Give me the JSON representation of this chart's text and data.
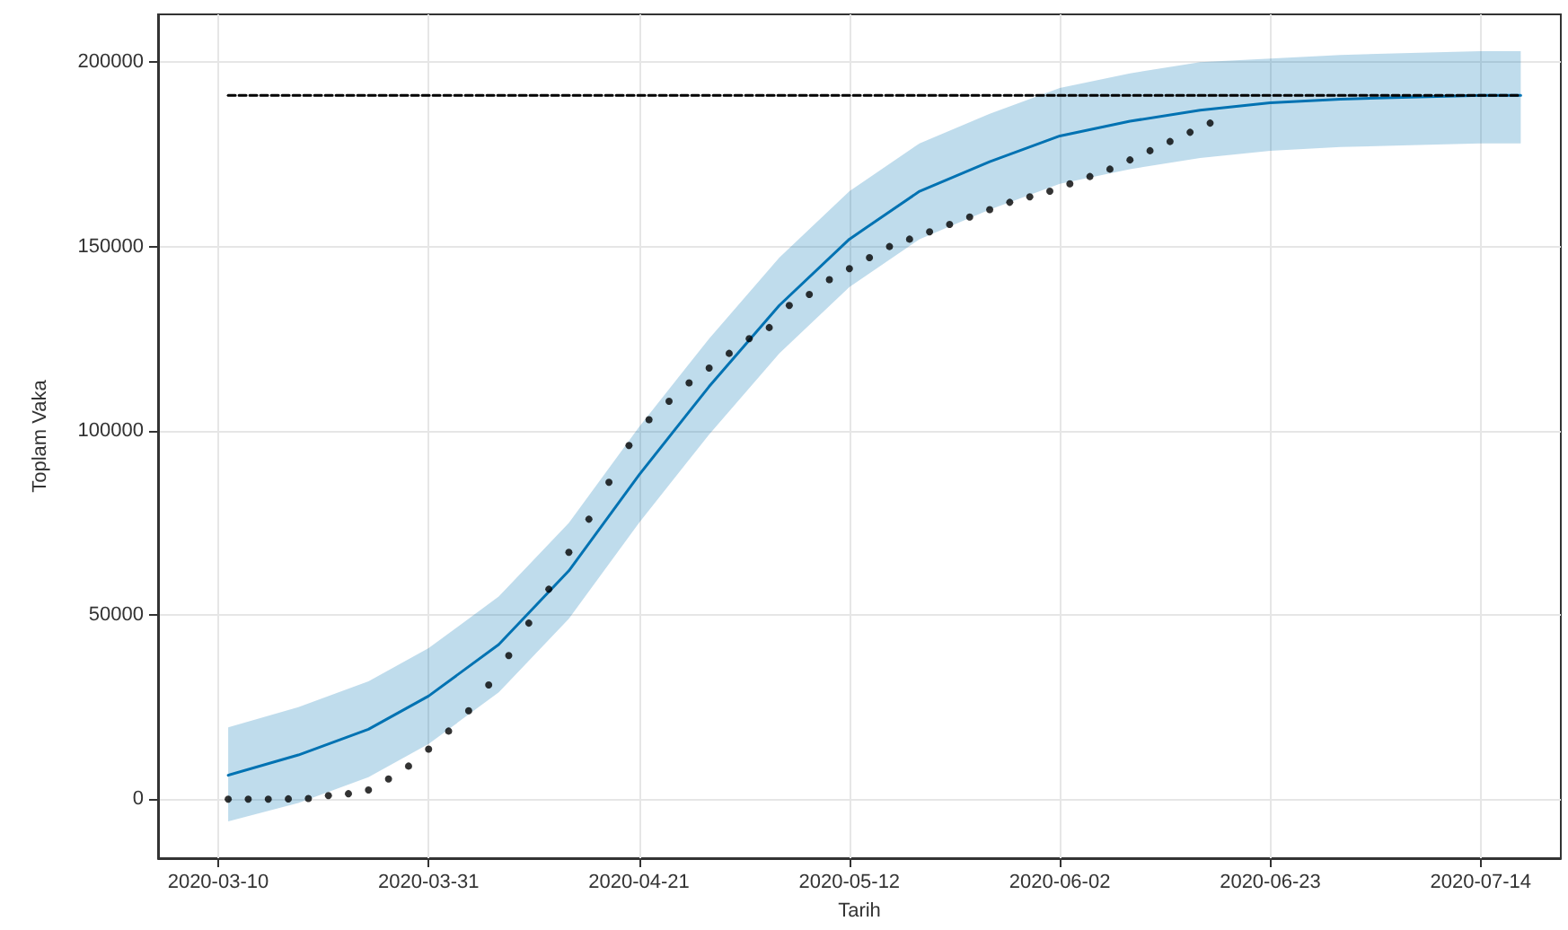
{
  "chart_data": {
    "type": "line",
    "xlabel": "Tarih",
    "ylabel": "Toplam Vaka",
    "grid": true,
    "xlim": [
      "2020-03-04",
      "2020-07-22"
    ],
    "xticks": [
      "2020-03-10",
      "2020-03-31",
      "2020-04-21",
      "2020-05-12",
      "2020-06-02",
      "2020-06-23",
      "2020-07-14"
    ],
    "ylim": [
      -16000,
      213000
    ],
    "yticks": [
      0,
      50000,
      100000,
      150000,
      200000
    ],
    "series": [
      {
        "color": "#000000",
        "line_style": "dashed",
        "marker": "none",
        "x": [
          "2020-03-11",
          "2020-07-18"
        ],
        "values": [
          191000,
          191000
        ]
      },
      {
        "color": "#0072b2",
        "marker": "none",
        "x": [
          "2020-03-11",
          "2020-03-18",
          "2020-03-25",
          "2020-03-31",
          "2020-04-07",
          "2020-04-14",
          "2020-04-21",
          "2020-04-28",
          "2020-05-05",
          "2020-05-12",
          "2020-05-19",
          "2020-05-26",
          "2020-06-02",
          "2020-06-09",
          "2020-06-16",
          "2020-06-23",
          "2020-06-30",
          "2020-07-07",
          "2020-07-14",
          "2020-07-18"
        ],
        "values": [
          6500,
          12000,
          19000,
          28000,
          42000,
          62000,
          88000,
          112000,
          134000,
          152000,
          165000,
          173000,
          180000,
          184000,
          187000,
          189000,
          190000,
          190500,
          191000,
          191000
        ],
        "lower": [
          -6000,
          -1000,
          6000,
          15000,
          29000,
          49000,
          75000,
          99000,
          121000,
          139000,
          152000,
          160000,
          167000,
          171000,
          174000,
          176000,
          177000,
          177500,
          178000,
          178000
        ],
        "upper": [
          19500,
          25000,
          32000,
          41000,
          55000,
          75000,
          101000,
          125000,
          147000,
          165000,
          178000,
          186000,
          193000,
          197000,
          200000,
          201000,
          202000,
          202500,
          203000,
          203000
        ]
      },
      {
        "type": "scatter",
        "color": "#000000",
        "marker": "circle",
        "x": [
          "2020-03-11",
          "2020-03-13",
          "2020-03-15",
          "2020-03-17",
          "2020-03-19",
          "2020-03-21",
          "2020-03-23",
          "2020-03-25",
          "2020-03-27",
          "2020-03-29",
          "2020-03-31",
          "2020-04-02",
          "2020-04-04",
          "2020-04-06",
          "2020-04-08",
          "2020-04-10",
          "2020-04-12",
          "2020-04-14",
          "2020-04-16",
          "2020-04-18",
          "2020-04-20",
          "2020-04-22",
          "2020-04-24",
          "2020-04-26",
          "2020-04-28",
          "2020-04-30",
          "2020-05-02",
          "2020-05-04",
          "2020-05-06",
          "2020-05-08",
          "2020-05-10",
          "2020-05-12",
          "2020-05-14",
          "2020-05-16",
          "2020-05-18",
          "2020-05-20",
          "2020-05-22",
          "2020-05-24",
          "2020-05-26",
          "2020-05-28",
          "2020-05-30",
          "2020-06-01",
          "2020-06-03",
          "2020-06-05",
          "2020-06-07",
          "2020-06-09",
          "2020-06-11",
          "2020-06-13",
          "2020-06-15",
          "2020-06-17"
        ],
        "values": [
          0,
          0,
          0,
          100,
          200,
          1000,
          1500,
          2500,
          5500,
          9000,
          13600,
          18500,
          24000,
          31000,
          39000,
          47800,
          57000,
          67000,
          76000,
          86000,
          96000,
          103000,
          108000,
          113000,
          117000,
          121000,
          125000,
          128000,
          134000,
          137000,
          141000,
          144000,
          147000,
          150000,
          152000,
          154000,
          156000,
          158000,
          160000,
          162000,
          163500,
          165000,
          167000,
          169000,
          171000,
          173500,
          176000,
          178500,
          181000,
          183500
        ]
      }
    ]
  }
}
